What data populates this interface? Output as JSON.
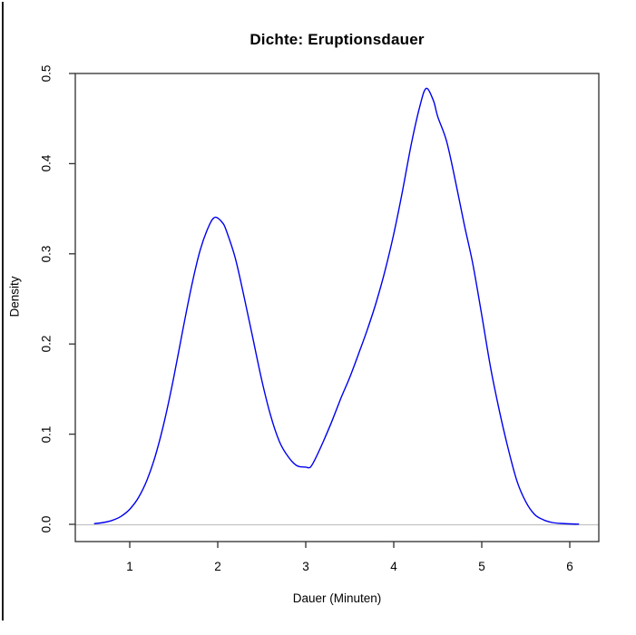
{
  "window": {
    "background_color": "#ffffff",
    "left_edge_color": "#1b1b1b"
  },
  "chart_data": {
    "type": "line",
    "title": "Dichte: Eruptionsdauer",
    "xlabel": "Dauer (Minuten)",
    "ylabel": "Density",
    "x_ticks": [
      1,
      2,
      3,
      4,
      5,
      6
    ],
    "x_tick_labels": [
      "1",
      "2",
      "3",
      "4",
      "5",
      "6"
    ],
    "y_ticks": [
      0.0,
      0.1,
      0.2,
      0.3,
      0.4,
      0.5
    ],
    "y_tick_labels": [
      "0.0",
      "0.1",
      "0.2",
      "0.3",
      "0.4",
      "0.5"
    ],
    "xlim": [
      0.38,
      6.32
    ],
    "ylim": [
      -0.019,
      0.5
    ],
    "grid": false,
    "legend": "none",
    "zero_line": {
      "y": 0,
      "color": "#c2c2c2"
    },
    "frame_color": "#2e2e2e",
    "notable_points": {
      "left_peak": [
        1.97,
        0.341
      ],
      "valley": [
        3.03,
        0.063
      ],
      "right_peak": [
        4.37,
        0.484
      ]
    },
    "series": [
      {
        "name": "density",
        "color": "#0000ee",
        "points": [
          [
            0.6,
            0.0008
          ],
          [
            0.7,
            0.002
          ],
          [
            0.8,
            0.0043
          ],
          [
            0.9,
            0.0088
          ],
          [
            1.0,
            0.0167
          ],
          [
            1.1,
            0.0298
          ],
          [
            1.2,
            0.05
          ],
          [
            1.3,
            0.079
          ],
          [
            1.4,
            0.117
          ],
          [
            1.5,
            0.163
          ],
          [
            1.6,
            0.214
          ],
          [
            1.7,
            0.263
          ],
          [
            1.8,
            0.304
          ],
          [
            1.9,
            0.331
          ],
          [
            1.97,
            0.3405
          ],
          [
            2.05,
            0.335
          ],
          [
            2.1,
            0.325
          ],
          [
            2.2,
            0.295
          ],
          [
            2.3,
            0.252
          ],
          [
            2.4,
            0.206
          ],
          [
            2.5,
            0.16
          ],
          [
            2.6,
            0.121
          ],
          [
            2.7,
            0.092
          ],
          [
            2.8,
            0.075
          ],
          [
            2.9,
            0.065
          ],
          [
            3.0,
            0.0635
          ],
          [
            3.05,
            0.0632
          ],
          [
            3.1,
            0.071
          ],
          [
            3.2,
            0.092
          ],
          [
            3.3,
            0.115
          ],
          [
            3.4,
            0.14
          ],
          [
            3.5,
            0.163
          ],
          [
            3.6,
            0.189
          ],
          [
            3.7,
            0.216
          ],
          [
            3.8,
            0.246
          ],
          [
            3.9,
            0.281
          ],
          [
            4.0,
            0.322
          ],
          [
            4.1,
            0.37
          ],
          [
            4.2,
            0.422
          ],
          [
            4.3,
            0.465
          ],
          [
            4.37,
            0.4835
          ],
          [
            4.45,
            0.47
          ],
          [
            4.5,
            0.452
          ],
          [
            4.6,
            0.425
          ],
          [
            4.7,
            0.381
          ],
          [
            4.8,
            0.333
          ],
          [
            4.9,
            0.288
          ],
          [
            5.0,
            0.232
          ],
          [
            5.1,
            0.174
          ],
          [
            5.2,
            0.126
          ],
          [
            5.3,
            0.084
          ],
          [
            5.4,
            0.048
          ],
          [
            5.5,
            0.025
          ],
          [
            5.6,
            0.011
          ],
          [
            5.7,
            0.005
          ],
          [
            5.8,
            0.002
          ],
          [
            5.9,
            0.001
          ],
          [
            6.0,
            0.0005
          ],
          [
            6.1,
            0.0002
          ]
        ]
      }
    ]
  }
}
